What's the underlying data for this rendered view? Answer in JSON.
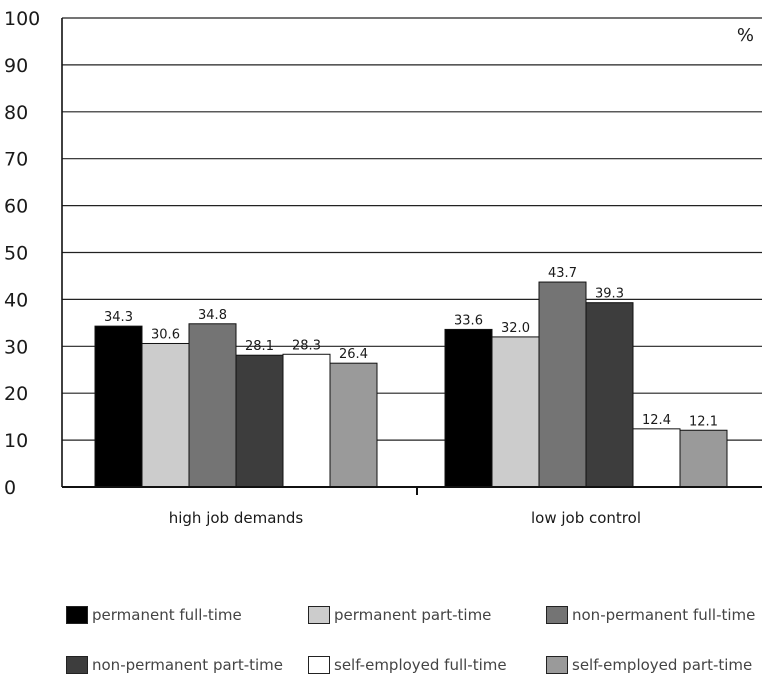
{
  "chart_data": {
    "type": "bar",
    "unit_label": "%",
    "ylim": [
      0,
      100
    ],
    "yticks": [
      0,
      10,
      20,
      30,
      40,
      50,
      60,
      70,
      80,
      90,
      100
    ],
    "grid": true,
    "legend_position": "bottom",
    "categories": [
      "high job demands",
      "low job control"
    ],
    "series": [
      {
        "name": "permanent full-time",
        "color": "#000000",
        "values": [
          34.3,
          33.6
        ],
        "labels": [
          "34.3",
          "33.6"
        ]
      },
      {
        "name": "permanent part-time",
        "color": "#cccccc",
        "values": [
          30.6,
          32.0
        ],
        "labels": [
          "30.6",
          "32.0"
        ]
      },
      {
        "name": "non-permanent full-time",
        "color": "#747474",
        "values": [
          34.8,
          43.7
        ],
        "labels": [
          "34.8",
          "43.7"
        ]
      },
      {
        "name": "non-permanent part-time",
        "color": "#3d3d3d",
        "values": [
          28.1,
          39.3
        ],
        "labels": [
          "28.1",
          "39.3"
        ]
      },
      {
        "name": "self-employed full-time",
        "color": "#ffffff",
        "values": [
          28.3,
          12.4
        ],
        "labels": [
          "28.3",
          "12.4"
        ]
      },
      {
        "name": "self-employed part-time",
        "color": "#9a9a9a",
        "values": [
          26.4,
          12.1
        ],
        "labels": [
          "26.4",
          "12.1"
        ]
      }
    ]
  }
}
